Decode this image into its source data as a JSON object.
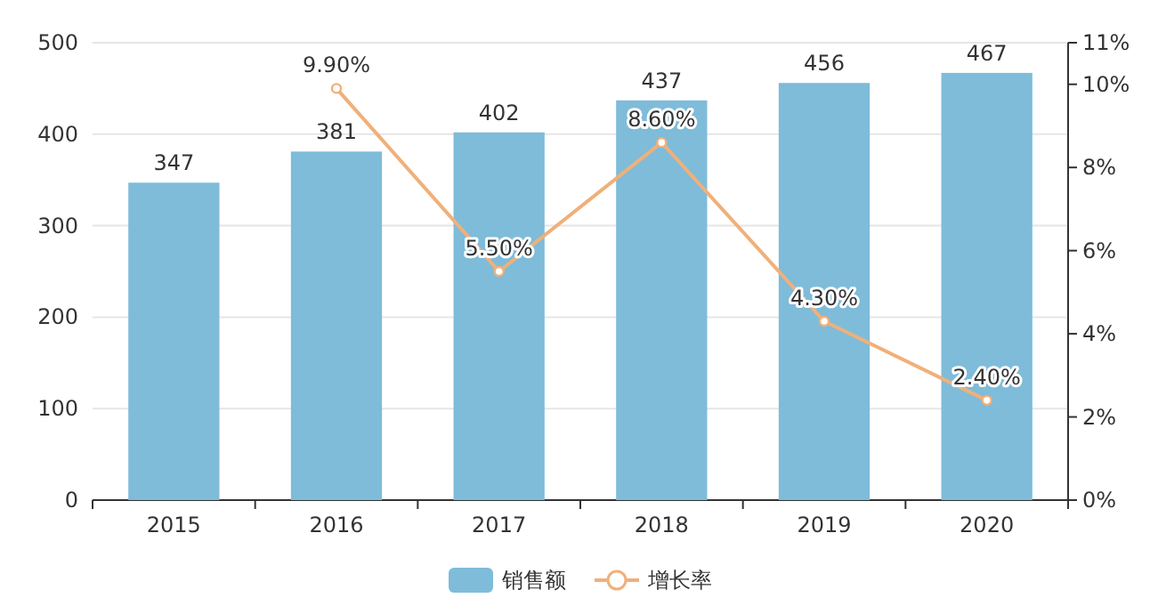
{
  "chart_data": {
    "type": "bar",
    "categories": [
      "2015",
      "2016",
      "2017",
      "2018",
      "2019",
      "2020"
    ],
    "series": [
      {
        "name": "销售额",
        "color": "#7ebcd9",
        "values": [
          347,
          381,
          402,
          437,
          456,
          467
        ],
        "value_labels": [
          "347",
          "381",
          "402",
          "437",
          "456",
          "467"
        ]
      },
      {
        "name": "增长率",
        "type": "line",
        "axis": "y2",
        "color": "#f0b07a",
        "values": [
          null,
          9.9,
          5.5,
          8.6,
          4.3,
          2.4
        ],
        "value_labels": [
          null,
          "9.90%",
          "5.50%",
          "8.60%",
          "4.30%",
          "2.40%"
        ]
      }
    ],
    "ylim": [
      0,
      500
    ],
    "yticks": [
      0,
      100,
      200,
      300,
      400,
      500
    ],
    "y2lim": [
      0,
      11
    ],
    "y2ticks": [
      {
        "value": 0,
        "label": "0%"
      },
      {
        "value": 2,
        "label": "2%"
      },
      {
        "value": 4,
        "label": "4%"
      },
      {
        "value": 6,
        "label": "6%"
      },
      {
        "value": 8,
        "label": "8%"
      },
      {
        "value": 10,
        "label": "10%"
      },
      {
        "value": 11,
        "label": "11%"
      }
    ],
    "grid": "y",
    "legend": "bottom",
    "marker": "circle"
  }
}
